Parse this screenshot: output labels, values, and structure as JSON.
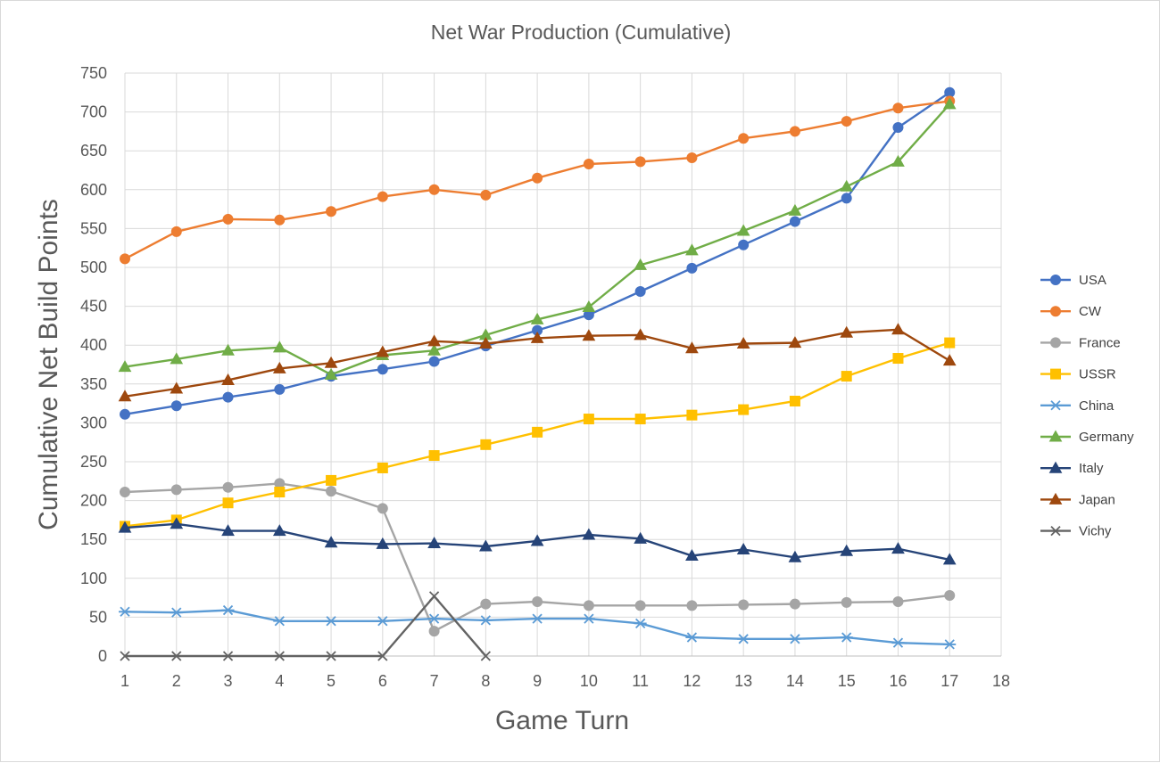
{
  "chart_data": {
    "type": "line",
    "title": "Net War Production (Cumulative)",
    "xlabel": "Game Turn",
    "ylabel": "Cumulative Net Build Points",
    "x": [
      1,
      2,
      3,
      4,
      5,
      6,
      7,
      8,
      9,
      10,
      11,
      12,
      13,
      14,
      15,
      16,
      17
    ],
    "xticks": [
      1,
      2,
      3,
      4,
      5,
      6,
      7,
      8,
      9,
      10,
      11,
      12,
      13,
      14,
      15,
      16,
      17,
      18
    ],
    "xlim": [
      1,
      18
    ],
    "ylim": [
      0,
      750
    ],
    "yticks": [
      0,
      50,
      100,
      150,
      200,
      250,
      300,
      350,
      400,
      450,
      500,
      550,
      600,
      650,
      700,
      750
    ],
    "grid": true,
    "legend_position": "right",
    "series": [
      {
        "name": "USA",
        "color": "#4472C4",
        "marker": "circle",
        "values": [
          311,
          322,
          333,
          343,
          360,
          369,
          379,
          399,
          419,
          439,
          469,
          499,
          529,
          559,
          589,
          680,
          725
        ]
      },
      {
        "name": "CW",
        "color": "#ED7D31",
        "marker": "circle",
        "values": [
          511,
          546,
          562,
          561,
          572,
          591,
          600,
          593,
          615,
          633,
          636,
          641,
          666,
          675,
          688,
          705,
          714
        ]
      },
      {
        "name": "France",
        "color": "#A5A5A5",
        "marker": "circle",
        "values": [
          211,
          214,
          217,
          222,
          212,
          190,
          32,
          67,
          70,
          65,
          65,
          65,
          66,
          67,
          69,
          70,
          78
        ]
      },
      {
        "name": "USSR",
        "color": "#FFC000",
        "marker": "square",
        "values": [
          167,
          175,
          197,
          211,
          226,
          242,
          258,
          272,
          288,
          305,
          305,
          310,
          317,
          328,
          360,
          383,
          403
        ]
      },
      {
        "name": "China",
        "color": "#5B9BD5",
        "marker": "star",
        "values": [
          57,
          56,
          59,
          45,
          45,
          45,
          48,
          46,
          48,
          48,
          42,
          24,
          22,
          22,
          24,
          17,
          15
        ]
      },
      {
        "name": "Germany",
        "color": "#70AD47",
        "marker": "triangle",
        "values": [
          372,
          382,
          393,
          397,
          362,
          387,
          393,
          413,
          433,
          449,
          503,
          522,
          547,
          573,
          604,
          636,
          710
        ]
      },
      {
        "name": "Italy",
        "color": "#264478",
        "marker": "triangle",
        "values": [
          165,
          170,
          161,
          161,
          146,
          144,
          145,
          141,
          148,
          156,
          151,
          129,
          137,
          127,
          135,
          138,
          124
        ]
      },
      {
        "name": "Japan",
        "color": "#9E480E",
        "marker": "triangle",
        "values": [
          334,
          344,
          355,
          370,
          377,
          391,
          405,
          402,
          409,
          412,
          413,
          396,
          402,
          403,
          416,
          420,
          380
        ]
      },
      {
        "name": "Vichy",
        "color": "#636363",
        "marker": "x",
        "values": [
          0,
          0,
          0,
          0,
          0,
          0,
          77,
          0,
          null,
          null,
          null,
          null,
          null,
          null,
          null,
          null,
          null
        ]
      }
    ]
  }
}
